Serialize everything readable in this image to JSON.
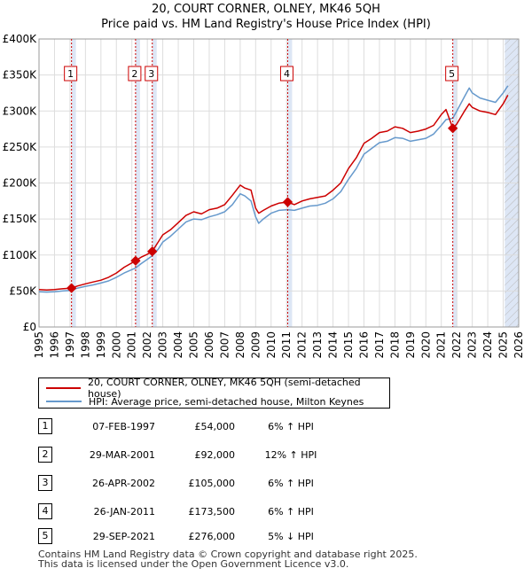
{
  "chart_data": {
    "type": "line",
    "title": "20, COURT CORNER, OLNEY, MK46 5QH",
    "subtitle": "Price paid vs. HM Land Registry's House Price Index (HPI)",
    "xlim": [
      1995,
      2026
    ],
    "ylim": [
      0,
      400000
    ],
    "x_ticks": [
      "1995",
      "1996",
      "1997",
      "1998",
      "1999",
      "2000",
      "2001",
      "2002",
      "2003",
      "2004",
      "2005",
      "2006",
      "2007",
      "2008",
      "2009",
      "2010",
      "2011",
      "2012",
      "2013",
      "2014",
      "2015",
      "2016",
      "2017",
      "2018",
      "2019",
      "2020",
      "2021",
      "2022",
      "2023",
      "2024",
      "2025",
      "2026"
    ],
    "y_ticks": [
      "£0",
      "£50K",
      "£100K",
      "£150K",
      "£200K",
      "£250K",
      "£300K",
      "£350K",
      "£400K"
    ],
    "y_tick_values": [
      0,
      50000,
      100000,
      150000,
      200000,
      250000,
      300000,
      350000,
      400000
    ],
    "grid": true,
    "legend_position": "below",
    "series": [
      {
        "name": "20, COURT CORNER, OLNEY, MK46 5QH (semi-detached house)",
        "color": "#cc0000",
        "points": [
          [
            1995.0,
            52000
          ],
          [
            1995.5,
            51500
          ],
          [
            1996.0,
            52000
          ],
          [
            1996.5,
            53000
          ],
          [
            1997.1,
            54000
          ],
          [
            1997.5,
            57000
          ],
          [
            1998.0,
            60000
          ],
          [
            1998.5,
            62500
          ],
          [
            1999.0,
            65000
          ],
          [
            1999.5,
            69000
          ],
          [
            2000.0,
            75000
          ],
          [
            2000.5,
            83000
          ],
          [
            2001.24,
            92000
          ],
          [
            2001.6,
            97000
          ],
          [
            2002.0,
            101000
          ],
          [
            2002.32,
            105000
          ],
          [
            2002.7,
            118000
          ],
          [
            2003.0,
            128000
          ],
          [
            2003.5,
            135000
          ],
          [
            2004.0,
            145000
          ],
          [
            2004.5,
            155000
          ],
          [
            2005.0,
            160000
          ],
          [
            2005.5,
            157000
          ],
          [
            2006.0,
            163000
          ],
          [
            2006.5,
            165000
          ],
          [
            2007.0,
            170000
          ],
          [
            2007.5,
            183000
          ],
          [
            2008.0,
            197000
          ],
          [
            2008.3,
            193000
          ],
          [
            2008.7,
            190000
          ],
          [
            2009.0,
            165000
          ],
          [
            2009.2,
            158000
          ],
          [
            2009.5,
            162000
          ],
          [
            2010.0,
            168000
          ],
          [
            2010.5,
            172000
          ],
          [
            2011.07,
            173500
          ],
          [
            2011.5,
            170000
          ],
          [
            2012.0,
            175000
          ],
          [
            2012.5,
            178000
          ],
          [
            2013.0,
            180000
          ],
          [
            2013.5,
            182000
          ],
          [
            2014.0,
            190000
          ],
          [
            2014.5,
            200000
          ],
          [
            2015.0,
            220000
          ],
          [
            2015.5,
            235000
          ],
          [
            2016.0,
            255000
          ],
          [
            2016.5,
            262000
          ],
          [
            2017.0,
            270000
          ],
          [
            2017.5,
            272000
          ],
          [
            2018.0,
            278000
          ],
          [
            2018.5,
            276000
          ],
          [
            2019.0,
            270000
          ],
          [
            2019.5,
            272000
          ],
          [
            2020.0,
            275000
          ],
          [
            2020.5,
            280000
          ],
          [
            2021.0,
            295000
          ],
          [
            2021.3,
            302000
          ],
          [
            2021.74,
            276000
          ],
          [
            2022.0,
            282000
          ],
          [
            2022.5,
            300000
          ],
          [
            2022.8,
            310000
          ],
          [
            2023.0,
            305000
          ],
          [
            2023.5,
            300000
          ],
          [
            2024.0,
            298000
          ],
          [
            2024.5,
            295000
          ],
          [
            2025.0,
            310000
          ],
          [
            2025.3,
            322000
          ]
        ]
      },
      {
        "name": "HPI: Average price, semi-detached house, Milton Keynes",
        "color": "#6699cc",
        "points": [
          [
            1995.0,
            49000
          ],
          [
            1995.5,
            48500
          ],
          [
            1996.0,
            49000
          ],
          [
            1996.5,
            50000
          ],
          [
            1997.1,
            51000
          ],
          [
            1997.5,
            54000
          ],
          [
            1998.0,
            56500
          ],
          [
            1998.5,
            58500
          ],
          [
            1999.0,
            61000
          ],
          [
            1999.5,
            64000
          ],
          [
            2000.0,
            69000
          ],
          [
            2000.5,
            75000
          ],
          [
            2001.24,
            82000
          ],
          [
            2001.6,
            88000
          ],
          [
            2002.0,
            94000
          ],
          [
            2002.32,
            99000
          ],
          [
            2002.7,
            108000
          ],
          [
            2003.0,
            118000
          ],
          [
            2003.5,
            126000
          ],
          [
            2004.0,
            136000
          ],
          [
            2004.5,
            146000
          ],
          [
            2005.0,
            150000
          ],
          [
            2005.5,
            149000
          ],
          [
            2006.0,
            153000
          ],
          [
            2006.5,
            156000
          ],
          [
            2007.0,
            160000
          ],
          [
            2007.5,
            170000
          ],
          [
            2008.0,
            185000
          ],
          [
            2008.3,
            182000
          ],
          [
            2008.7,
            175000
          ],
          [
            2009.0,
            153000
          ],
          [
            2009.2,
            144000
          ],
          [
            2009.5,
            150000
          ],
          [
            2010.0,
            158000
          ],
          [
            2010.5,
            162000
          ],
          [
            2011.07,
            163000
          ],
          [
            2011.5,
            162000
          ],
          [
            2012.0,
            165000
          ],
          [
            2012.5,
            168000
          ],
          [
            2013.0,
            169000
          ],
          [
            2013.5,
            172000
          ],
          [
            2014.0,
            178000
          ],
          [
            2014.5,
            188000
          ],
          [
            2015.0,
            205000
          ],
          [
            2015.5,
            220000
          ],
          [
            2016.0,
            240000
          ],
          [
            2016.5,
            248000
          ],
          [
            2017.0,
            256000
          ],
          [
            2017.5,
            258000
          ],
          [
            2018.0,
            263000
          ],
          [
            2018.5,
            262000
          ],
          [
            2019.0,
            258000
          ],
          [
            2019.5,
            260000
          ],
          [
            2020.0,
            262000
          ],
          [
            2020.5,
            268000
          ],
          [
            2021.0,
            280000
          ],
          [
            2021.3,
            288000
          ],
          [
            2021.74,
            290000
          ],
          [
            2022.0,
            300000
          ],
          [
            2022.5,
            320000
          ],
          [
            2022.8,
            332000
          ],
          [
            2023.0,
            325000
          ],
          [
            2023.5,
            318000
          ],
          [
            2024.0,
            315000
          ],
          [
            2024.5,
            312000
          ],
          [
            2025.0,
            325000
          ],
          [
            2025.3,
            335000
          ]
        ]
      }
    ],
    "sales": [
      {
        "n": "1",
        "x": 1997.1,
        "price": 54000
      },
      {
        "n": "2",
        "x": 2001.24,
        "price": 92000
      },
      {
        "n": "3",
        "x": 2002.32,
        "price": 105000
      },
      {
        "n": "4",
        "x": 2011.07,
        "price": 173500
      },
      {
        "n": "5",
        "x": 2021.74,
        "price": 276000
      }
    ],
    "hatch_from": 2025.1,
    "shade_color": "#dde6f5"
  },
  "legend": {
    "line1": "20, COURT CORNER, OLNEY, MK46 5QH (semi-detached house)",
    "line2": "HPI: Average price, semi-detached house, Milton Keynes"
  },
  "table": [
    {
      "n": "1",
      "date": "07-FEB-1997",
      "price": "£54,000",
      "hpi": "6% ↑ HPI"
    },
    {
      "n": "2",
      "date": "29-MAR-2001",
      "price": "£92,000",
      "hpi": "12% ↑ HPI"
    },
    {
      "n": "3",
      "date": "26-APR-2002",
      "price": "£105,000",
      "hpi": "6% ↑ HPI"
    },
    {
      "n": "4",
      "date": "26-JAN-2011",
      "price": "£173,500",
      "hpi": "6% ↑ HPI"
    },
    {
      "n": "5",
      "date": "29-SEP-2021",
      "price": "£276,000",
      "hpi": "5% ↓ HPI"
    }
  ],
  "footer": {
    "line1": "Contains HM Land Registry data © Crown copyright and database right 2025.",
    "line2": "This data is licensed under the Open Government Licence v3.0."
  }
}
